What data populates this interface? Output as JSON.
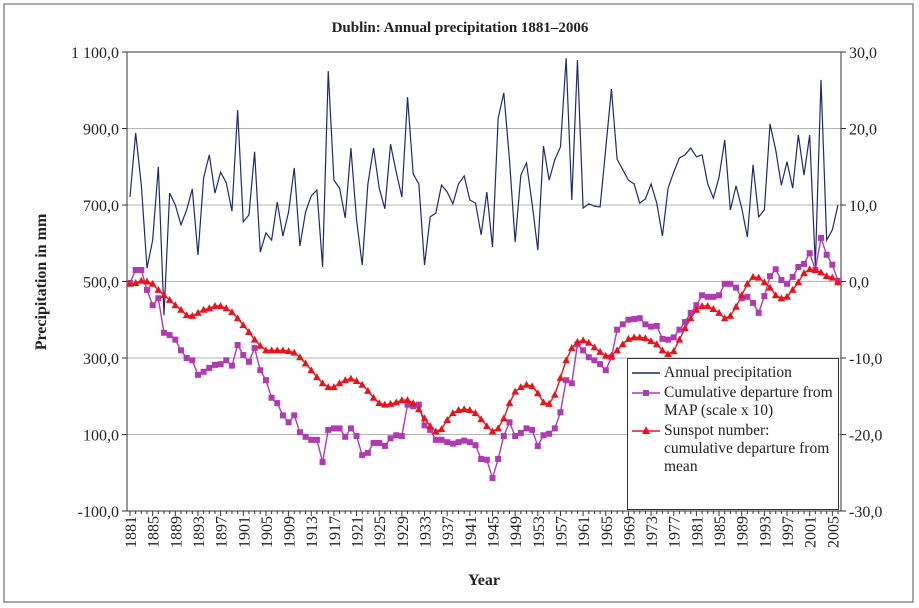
{
  "chart_data": {
    "type": "line",
    "title": "Dublin: Annual precipitation 1881–2006",
    "x_label": "Year",
    "y_label": "Precipitation in mm",
    "categories": [
      "1881",
      null,
      null,
      null,
      "1885",
      null,
      null,
      null,
      "1889",
      null,
      null,
      null,
      "1893",
      null,
      null,
      null,
      "1897",
      null,
      null,
      null,
      "1901",
      null,
      null,
      null,
      "1905",
      null,
      null,
      null,
      "1909",
      null,
      null,
      null,
      "1913",
      null,
      null,
      null,
      "1917",
      null,
      null,
      null,
      "1921",
      null,
      null,
      null,
      "1925",
      null,
      null,
      null,
      "1929",
      null,
      null,
      null,
      "1933",
      null,
      null,
      null,
      "1937",
      null,
      null,
      null,
      "1941",
      null,
      null,
      null,
      "1945",
      null,
      null,
      null,
      "1949",
      null,
      null,
      null,
      "1953",
      null,
      null,
      null,
      "1957",
      null,
      null,
      null,
      "1961",
      null,
      null,
      null,
      "1965",
      null,
      null,
      null,
      "1969",
      null,
      null,
      null,
      "1973",
      null,
      null,
      null,
      "1977",
      null,
      null,
      null,
      "1981",
      null,
      null,
      null,
      "1985",
      null,
      null,
      null,
      "1989",
      null,
      null,
      null,
      "1993",
      null,
      null,
      null,
      "1997",
      null,
      null,
      null,
      "2001",
      null,
      null,
      null,
      "2005",
      null
    ],
    "ylim": [
      -100,
      1100
    ],
    "yticks": [
      {
        "value": -100,
        "label": "-100,0"
      },
      {
        "value": 100,
        "label": "100,0"
      },
      {
        "value": 300,
        "label": "300,0"
      },
      {
        "value": 500,
        "label": "500,0"
      },
      {
        "value": 700,
        "label": "700,0"
      },
      {
        "value": 900,
        "label": "900,0"
      },
      {
        "value": 1100,
        "label": "1 100,0"
      }
    ],
    "y2lim": [
      -30,
      30
    ],
    "y2ticks": [
      {
        "value": -30,
        "label": "-30,0"
      },
      {
        "value": -20,
        "label": "-20,0"
      },
      {
        "value": -10,
        "label": "-10,0"
      },
      {
        "value": 0,
        "label": "0,0"
      },
      {
        "value": 10,
        "label": "10,0"
      },
      {
        "value": 20,
        "label": "20,0"
      },
      {
        "value": 30,
        "label": "30,0"
      }
    ],
    "grid": true,
    "legend": "lower right",
    "series": [
      {
        "name": "Annual precipitation",
        "color": "#1f2a6e",
        "marker": "none",
        "values": [
          721,
          888,
          752,
          535,
          608,
          800,
          412,
          731,
          700,
          648,
          687,
          742,
          569,
          771,
          831,
          731,
          786,
          758,
          684,
          948,
          656,
          674,
          839,
          577,
          627,
          608,
          708,
          619,
          682,
          797,
          593,
          682,
          724,
          739,
          538,
          1050,
          765,
          744,
          666,
          849,
          661,
          543,
          755,
          849,
          744,
          690,
          859,
          786,
          721,
          982,
          781,
          755,
          543,
          669,
          679,
          752,
          734,
          703,
          755,
          776,
          713,
          705,
          622,
          734,
          590,
          927,
          993,
          818,
          603,
          778,
          810,
          703,
          582,
          854,
          765,
          818,
          852,
          1084,
          713,
          1079,
          692,
          703,
          697,
          695,
          849,
          1003,
          820,
          792,
          765,
          755,
          705,
          716,
          755,
          705,
          619,
          744,
          786,
          823,
          831,
          849,
          826,
          831,
          755,
          718,
          773,
          870,
          687,
          750,
          692,
          616,
          805,
          669,
          687,
          912,
          844,
          752,
          813,
          744,
          883,
          778,
          883,
          541,
          1027,
          608,
          635,
          700
        ]
      },
      {
        "name": "Cumulative departure from MAP (scale x 10)",
        "color": "#b03bb0",
        "marker": "square",
        "axis": "y2",
        "values": [
          -0.2,
          1.5,
          1.5,
          -1.1,
          -3.1,
          -2.2,
          -6.7,
          -7.0,
          -7.6,
          -9.0,
          -10.0,
          -10.3,
          -12.2,
          -11.8,
          -11.3,
          -10.9,
          -10.8,
          -10.3,
          -11.0,
          -8.3,
          -9.6,
          -10.5,
          -8.7,
          -11.6,
          -12.9,
          -15.2,
          -15.9,
          -17.5,
          -18.4,
          -17.5,
          -19.7,
          -20.3,
          -20.7,
          -20.7,
          -23.6,
          -19.4,
          -19.2,
          -19.2,
          -20.3,
          -19.2,
          -20.2,
          -22.7,
          -22.4,
          -21.1,
          -21.1,
          -21.5,
          -20.5,
          -20.1,
          -20.2,
          -16.1,
          -16.3,
          -16.1,
          -18.8,
          -19.4,
          -20.7,
          -20.7,
          -21.0,
          -21.2,
          -21.0,
          -20.8,
          -21.0,
          -21.4,
          -23.2,
          -23.3,
          -25.7,
          -23.2,
          -20.2,
          -18.4,
          -20.2,
          -19.8,
          -19.2,
          -19.4,
          -21.5,
          -20.1,
          -19.9,
          -19.2,
          -17.1,
          -12.9,
          -13.3,
          -8.2,
          -9.0,
          -9.9,
          -10.3,
          -10.8,
          -11.6,
          -9.9,
          -6.3,
          -5.6,
          -5.0,
          -4.9,
          -4.8,
          -5.6,
          -5.9,
          -5.8,
          -7.5,
          -7.6,
          -7.3,
          -6.3,
          -5.3,
          -4.1,
          -3.1,
          -1.8,
          -2.0,
          -2.0,
          -1.8,
          -0.3,
          -0.3,
          -0.8,
          -2.2,
          -2.0,
          -2.8,
          -4.1,
          -1.9,
          0.7,
          1.6,
          0.2,
          -0.3,
          0.6,
          1.9,
          2.3,
          3.7,
          1.5,
          5.7,
          3.5,
          2.2,
          0.1
        ]
      },
      {
        "name": "Sunspot number: cumulative departure from mean",
        "color": "#e8141c",
        "marker": "triangle",
        "axis": "y2",
        "values": [
          -0.3,
          -0.2,
          0.1,
          0,
          -0.3,
          -1.1,
          -1.8,
          -2.4,
          -3.1,
          -3.7,
          -4.4,
          -4.5,
          -4.1,
          -3.7,
          -3.5,
          -3.2,
          -3.2,
          -3.5,
          -4.0,
          -4.8,
          -5.7,
          -6.6,
          -7.6,
          -8.4,
          -9.0,
          -9.0,
          -9.0,
          -9.0,
          -9.1,
          -9.3,
          -9.9,
          -10.7,
          -11.6,
          -12.5,
          -13.3,
          -13.8,
          -13.8,
          -13.3,
          -12.9,
          -12.7,
          -13.0,
          -13.5,
          -14.3,
          -15.2,
          -15.9,
          -16.1,
          -16.0,
          -15.8,
          -15.5,
          -15.5,
          -15.9,
          -16.7,
          -17.9,
          -18.9,
          -19.6,
          -19.3,
          -18.1,
          -17.2,
          -16.8,
          -16.7,
          -16.8,
          -17.2,
          -18.0,
          -18.9,
          -19.6,
          -19.2,
          -17.9,
          -15.9,
          -14.4,
          -13.8,
          -13.5,
          -13.7,
          -14.6,
          -15.8,
          -16.0,
          -14.8,
          -12.6,
          -10.3,
          -8.7,
          -7.9,
          -7.7,
          -8.0,
          -8.6,
          -9.2,
          -9.7,
          -9.7,
          -9.0,
          -8.2,
          -7.5,
          -7.3,
          -7.3,
          -7.4,
          -7.8,
          -8.2,
          -9.0,
          -9.5,
          -9.1,
          -7.6,
          -6.1,
          -4.8,
          -3.7,
          -3.2,
          -3.2,
          -3.6,
          -4.1,
          -4.8,
          -4.5,
          -3.3,
          -1.8,
          -0.3,
          0.6,
          0.5,
          -0.1,
          -0.8,
          -1.8,
          -2.2,
          -2.0,
          -1.1,
          -0.1,
          1.1,
          1.6,
          1.5,
          1.2,
          0.7,
          0.5,
          -0.1
        ]
      }
    ]
  }
}
